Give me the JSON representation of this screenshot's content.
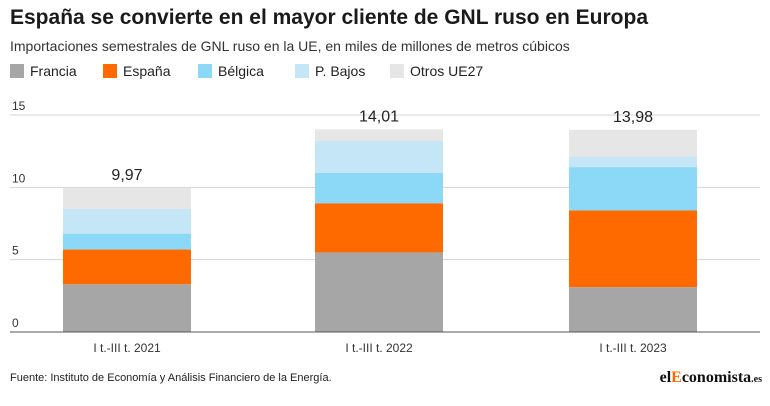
{
  "header": {
    "title": "España se convierte en el mayor cliente de GNL ruso en Europa",
    "subtitle": "Importaciones semestrales de GNL ruso en la UE, en miles de millones de metros cúbicos"
  },
  "chart_data": {
    "type": "bar",
    "stacked": true,
    "categories": [
      "I t.-III t. 2021",
      "I t.-III t. 2022",
      "I t.-III t. 2023"
    ],
    "series": [
      {
        "name": "Francia",
        "color": "#a6a6a6",
        "values": [
          3.3,
          5.5,
          3.1
        ]
      },
      {
        "name": "España",
        "color": "#ff6a00",
        "values": [
          2.4,
          3.4,
          5.3
        ]
      },
      {
        "name": "Bélgica",
        "color": "#8bd8f7",
        "values": [
          1.1,
          2.1,
          3.0
        ]
      },
      {
        "name": "P. Bajos",
        "color": "#c4e6f6",
        "values": [
          1.7,
          2.2,
          0.7
        ]
      },
      {
        "name": "Otros UE27",
        "color": "#e6e6e6",
        "values": [
          1.47,
          0.81,
          1.88
        ]
      }
    ],
    "totals": [
      "9,97",
      "14,01",
      "13,98"
    ],
    "ylim": [
      0,
      15
    ],
    "yticks": [
      0,
      5,
      10,
      15
    ],
    "grid": true,
    "legend_position": "top-left",
    "xlabel": "",
    "ylabel": ""
  },
  "footer": {
    "source": "Fuente: Instituto de Economía y Análisis Financiero de la Energía.",
    "brand_part1": "el",
    "brand_part2": "E",
    "brand_part3": "conomista",
    "brand_part4": ".es"
  }
}
